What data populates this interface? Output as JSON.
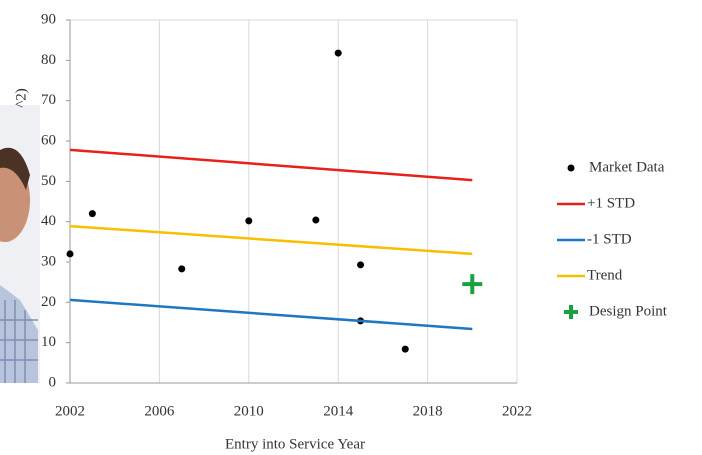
{
  "chart_data": {
    "type": "scatter",
    "x_label": "Entry into Service Year",
    "y_label": "^2)",
    "xlim": [
      2002,
      2022
    ],
    "xticks": [
      2002,
      2006,
      2010,
      2014,
      2018,
      2022
    ],
    "ylim": [
      0,
      90
    ],
    "yticks": [
      0,
      10,
      20,
      30,
      40,
      50,
      60,
      70,
      80,
      90
    ],
    "grid": "x",
    "series": [
      {
        "name": "Market Data",
        "kind": "scatter",
        "marker": "dot",
        "color": "#000000",
        "x": [
          2002,
          2003,
          2007,
          2010,
          2013,
          2014,
          2015,
          2015,
          2017
        ],
        "values": [
          32,
          42,
          28.3,
          40.2,
          40.4,
          81.8,
          29.3,
          15.4,
          8.4
        ]
      },
      {
        "name": "+1 STD",
        "kind": "line",
        "color": "#e8201c",
        "x": [
          2002,
          2020
        ],
        "values": [
          57.8,
          50.3
        ]
      },
      {
        "name": "-1 STD",
        "kind": "line",
        "color": "#1f77c0",
        "x": [
          2002,
          2020
        ],
        "values": [
          20.6,
          13.4
        ]
      },
      {
        "name": "Trend",
        "kind": "line",
        "color": "#f5c000",
        "x": [
          2002,
          2020
        ],
        "values": [
          38.9,
          32
        ]
      },
      {
        "name": "Design Point",
        "kind": "scatter",
        "marker": "plus",
        "color": "#1aa040",
        "x": [
          2020
        ],
        "values": [
          24.5
        ]
      }
    ]
  }
}
